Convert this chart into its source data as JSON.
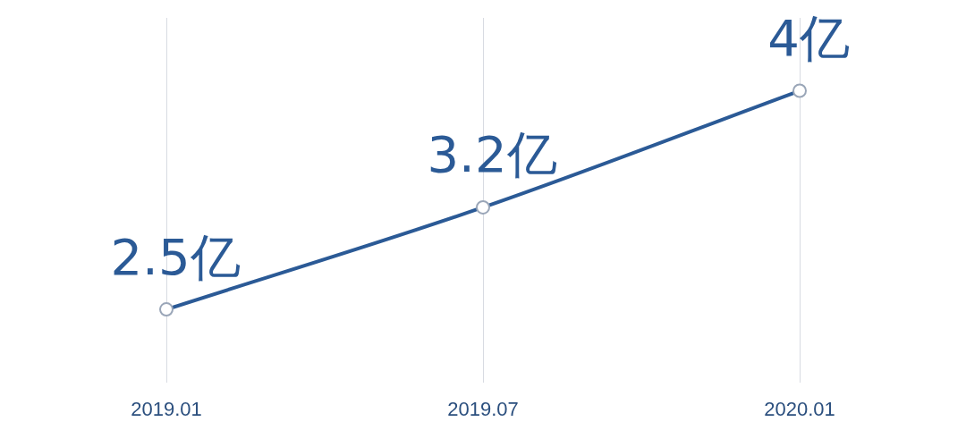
{
  "chart_data": {
    "type": "line",
    "categories": [
      "2019.01",
      "2019.07",
      "2020.01"
    ],
    "series": [
      {
        "color": "#2b5a96",
        "values": [
          2.5,
          3.2,
          4
        ],
        "value_labels": [
          "2.5亿",
          "3.2亿",
          "4亿"
        ]
      }
    ],
    "grid": "x",
    "tick_labels": "x",
    "marker": "circle",
    "line_style": "solid",
    "legend": false
  }
}
